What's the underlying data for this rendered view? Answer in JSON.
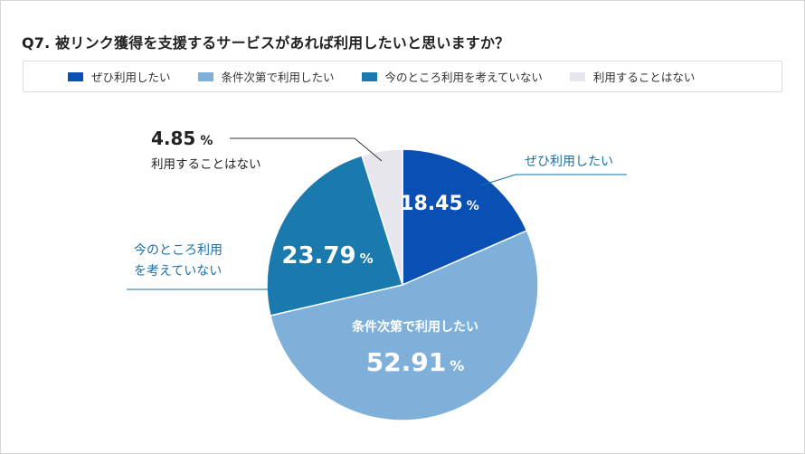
{
  "title": "Q7. 被リンク獲得を支援するサービスがあれば利用したいと思いますか？",
  "colors": {
    "seg0": "#0a4fb3",
    "seg1": "#7fb0da",
    "seg2": "#1a79ad",
    "seg3": "#e6e6ec",
    "text_dark": "#222222",
    "text_blue": "#1a6fa8"
  },
  "chart_data": {
    "type": "pie",
    "title": "Q7. 被リンク獲得を支援するサービスがあれば利用したいと思いますか？",
    "unit": "%",
    "labels": [
      "ぜひ利用したい",
      "条件次第で利用したい",
      "今のところ利用を考えていない",
      "利用することはない"
    ],
    "values": [
      18.45,
      52.91,
      23.79,
      4.85
    ],
    "value_text": [
      "18.45",
      "52.91",
      "23.79",
      "4.85"
    ],
    "callout_labels": {
      "seg0": "ぜひ利用したい",
      "seg1": "条件次第で利用したい",
      "seg2_line1": "今のところ利用",
      "seg2_line2": "を考えていない",
      "seg3": "利用することはない"
    },
    "legend_position": "top",
    "start_angle": "12 o'clock, clockwise"
  }
}
